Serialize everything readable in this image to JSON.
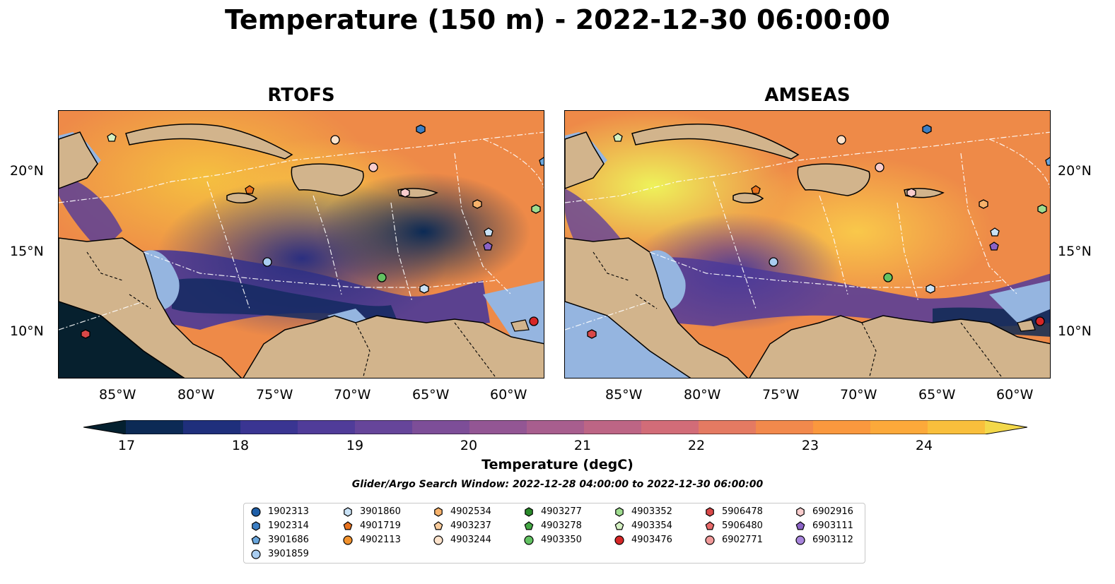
{
  "title": "Temperature (150 m) - 2022-12-30 06:00:00",
  "panels": [
    {
      "title": "RTOFS"
    },
    {
      "title": "AMSEAS"
    }
  ],
  "axes": {
    "lon_labels": [
      "85°W",
      "80°W",
      "75°W",
      "70°W",
      "65°W",
      "60°W"
    ],
    "lat_labels": [
      "20°N",
      "15°N",
      "10°N"
    ]
  },
  "colorbar": {
    "label": "Temperature (degC)",
    "ticks": [
      "17",
      "18",
      "19",
      "20",
      "21",
      "22",
      "23",
      "24"
    ],
    "colors": [
      "#04202f",
      "#0c2a55",
      "#1f2f7c",
      "#3a3592",
      "#503c99",
      "#66459a",
      "#7d4e98",
      "#935694",
      "#a85e8e",
      "#bd6585",
      "#d26c78",
      "#e47a62",
      "#f2894c",
      "#fa983e",
      "#fca93a",
      "#f9bf3c",
      "#f3d84a"
    ]
  },
  "search_window": "Glider/Argo Search Window: 2022-12-28 04:00:00 to 2022-12-30 06:00:00",
  "legend": [
    {
      "id": "1902313",
      "shape": "circle",
      "color": "#1f5fa8"
    },
    {
      "id": "1902314",
      "shape": "hexagon",
      "color": "#3d7fc4"
    },
    {
      "id": "3901686",
      "shape": "pentagon",
      "color": "#6aa6dc"
    },
    {
      "id": "3901859",
      "shape": "circle",
      "color": "#a9cdf0"
    },
    {
      "id": "3901860",
      "shape": "hexagon",
      "color": "#c9e2f6"
    },
    {
      "id": "4901719",
      "shape": "pentagon",
      "color": "#e8731f"
    },
    {
      "id": "4902113",
      "shape": "circle",
      "color": "#f2922d"
    },
    {
      "id": "4902534",
      "shape": "hexagon",
      "color": "#f7b26b"
    },
    {
      "id": "4903237",
      "shape": "pentagon",
      "color": "#f9cc9c"
    },
    {
      "id": "4903244",
      "shape": "circle",
      "color": "#fde3cc"
    },
    {
      "id": "4903277",
      "shape": "hexagon",
      "color": "#2a8a2a"
    },
    {
      "id": "4903278",
      "shape": "pentagon",
      "color": "#45a845"
    },
    {
      "id": "4903350",
      "shape": "circle",
      "color": "#62c262"
    },
    {
      "id": "4903352",
      "shape": "hexagon",
      "color": "#9fdc8f"
    },
    {
      "id": "4903354",
      "shape": "pentagon",
      "color": "#d4f0c2"
    },
    {
      "id": "4903476",
      "shape": "circle",
      "color": "#d62626"
    },
    {
      "id": "5906478",
      "shape": "hexagon",
      "color": "#d94848"
    },
    {
      "id": "5906480",
      "shape": "pentagon",
      "color": "#e86a6a"
    },
    {
      "id": "6902771",
      "shape": "circle",
      "color": "#f19a9a"
    },
    {
      "id": "6902916",
      "shape": "hexagon",
      "color": "#f9cdcd"
    },
    {
      "id": "6903111",
      "shape": "pentagon",
      "color": "#8b63c6"
    },
    {
      "id": "6903112",
      "shape": "circle",
      "color": "#a885dc"
    }
  ],
  "map_colors": {
    "land": "#d2b48c",
    "shallow": "#95b5e0",
    "coast": "#000000"
  }
}
